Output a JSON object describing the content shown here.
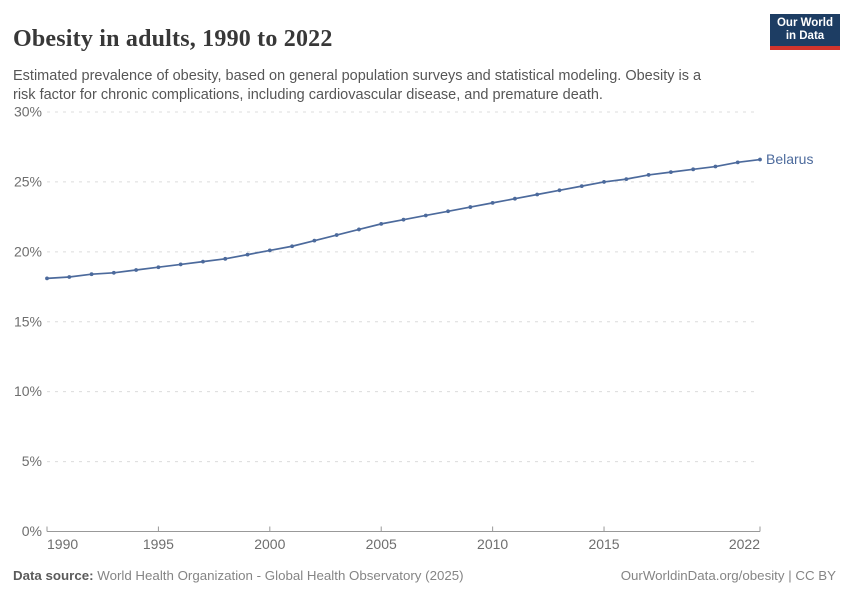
{
  "header": {
    "title": "Obesity in adults, 1990 to 2022",
    "subtitle": "Estimated prevalence of obesity, based on general population surveys and statistical modeling. Obesity is a risk factor for chronic complications, including cardiovascular disease, and premature death.",
    "logo_line1": "Our World",
    "logo_line2": "in Data"
  },
  "footer": {
    "source_label": "Data source:",
    "source_text": " World Health Organization - Global Health Observatory (2025)",
    "link_text": "OurWorldinData.org/obesity | CC BY"
  },
  "colors": {
    "line": "#4c6a9c",
    "entity_label": "#4c6a9c",
    "grid": "#dcdcdc",
    "axis": "#999999",
    "tick_label": "#6e6e6e",
    "logo_bg": "#1d3d63",
    "logo_accent": "#d1342c"
  },
  "chart_data": {
    "type": "line",
    "title": "Obesity in adults, 1990 to 2022",
    "xlabel": "",
    "ylabel": "",
    "x": [
      1990,
      1991,
      1992,
      1993,
      1994,
      1995,
      1996,
      1997,
      1998,
      1999,
      2000,
      2001,
      2002,
      2003,
      2004,
      2005,
      2006,
      2007,
      2008,
      2009,
      2010,
      2011,
      2012,
      2013,
      2014,
      2015,
      2016,
      2017,
      2018,
      2019,
      2020,
      2021,
      2022
    ],
    "series": [
      {
        "name": "Belarus",
        "values": [
          18.1,
          18.2,
          18.4,
          18.5,
          18.7,
          18.9,
          19.1,
          19.3,
          19.5,
          19.8,
          20.1,
          20.4,
          20.8,
          21.2,
          21.6,
          22.0,
          22.3,
          22.6,
          22.9,
          23.2,
          23.5,
          23.8,
          24.1,
          24.4,
          24.7,
          25.0,
          25.2,
          25.5,
          25.7,
          25.9,
          26.1,
          26.4,
          26.6
        ]
      }
    ],
    "xlim": [
      1990,
      2022
    ],
    "ylim": [
      0,
      30
    ],
    "xticks": [
      1990,
      1995,
      2000,
      2005,
      2010,
      2015,
      2022
    ],
    "yticks": [
      0,
      5,
      10,
      15,
      20,
      25,
      30
    ],
    "ytick_suffix": "%",
    "grid": "horizontal-dashed",
    "legend_position": "end-of-line",
    "markers": true
  }
}
